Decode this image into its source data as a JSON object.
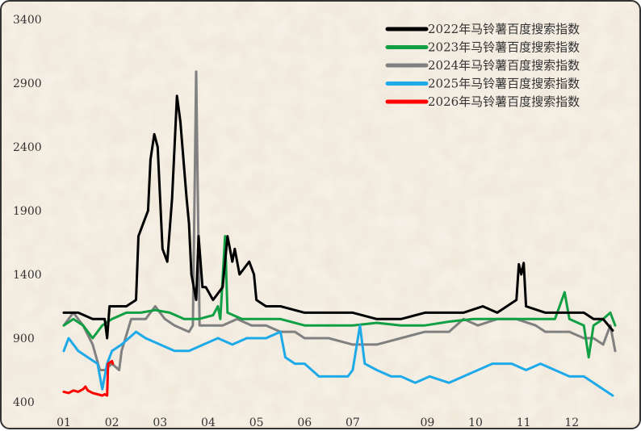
{
  "chart_data": {
    "type": "line",
    "ylim": [
      400,
      3400
    ],
    "y_ticks": [
      "400",
      "900",
      "1400",
      "1900",
      "2400",
      "2900",
      "3400"
    ],
    "x_ticks": [
      "01",
      "02",
      "03",
      "04",
      "05",
      "06",
      "07",
      "09",
      "10",
      "11",
      "12"
    ],
    "legend_position": "top-right",
    "grid": false,
    "series": [
      {
        "name": "2022年马铃薯百度搜索指数",
        "color": "#000000",
        "points": [
          [
            1.0,
            1100
          ],
          [
            1.3,
            1100
          ],
          [
            1.6,
            1050
          ],
          [
            1.85,
            1050
          ],
          [
            1.9,
            900
          ],
          [
            1.95,
            1150
          ],
          [
            2.3,
            1150
          ],
          [
            2.5,
            1200
          ],
          [
            2.55,
            1700
          ],
          [
            2.65,
            1800
          ],
          [
            2.75,
            1900
          ],
          [
            2.8,
            2300
          ],
          [
            2.88,
            2500
          ],
          [
            2.95,
            2400
          ],
          [
            3.05,
            1600
          ],
          [
            3.15,
            1500
          ],
          [
            3.25,
            2000
          ],
          [
            3.35,
            2800
          ],
          [
            3.42,
            2600
          ],
          [
            3.55,
            2000
          ],
          [
            3.6,
            1800
          ],
          [
            3.65,
            1400
          ],
          [
            3.7,
            1300
          ],
          [
            3.75,
            1200
          ],
          [
            3.8,
            1700
          ],
          [
            3.88,
            1300
          ],
          [
            3.95,
            1300
          ],
          [
            4.1,
            1200
          ],
          [
            4.3,
            1300
          ],
          [
            4.4,
            1700
          ],
          [
            4.5,
            1500
          ],
          [
            4.55,
            1600
          ],
          [
            4.65,
            1400
          ],
          [
            4.75,
            1450
          ],
          [
            4.85,
            1500
          ],
          [
            4.95,
            1400
          ],
          [
            5.0,
            1200
          ],
          [
            5.2,
            1150
          ],
          [
            5.5,
            1150
          ],
          [
            6.0,
            1100
          ],
          [
            6.5,
            1100
          ],
          [
            7.0,
            1100
          ],
          [
            7.5,
            1050
          ],
          [
            8.0,
            1050
          ],
          [
            8.5,
            1100
          ],
          [
            9.0,
            1100
          ],
          [
            9.3,
            1100
          ],
          [
            9.7,
            1150
          ],
          [
            10.0,
            1100
          ],
          [
            10.2,
            1150
          ],
          [
            10.4,
            1200
          ],
          [
            10.45,
            1480
          ],
          [
            10.5,
            1400
          ],
          [
            10.55,
            1490
          ],
          [
            10.6,
            1150
          ],
          [
            11.0,
            1100
          ],
          [
            11.5,
            1100
          ],
          [
            11.8,
            1100
          ],
          [
            12.0,
            1050
          ],
          [
            12.2,
            1050
          ],
          [
            12.4,
            960
          ]
        ]
      },
      {
        "name": "2023年马铃薯百度搜索指数",
        "color": "#10a043",
        "points": [
          [
            1.0,
            1000
          ],
          [
            1.2,
            1050
          ],
          [
            1.4,
            1000
          ],
          [
            1.6,
            900
          ],
          [
            1.8,
            1000
          ],
          [
            2.0,
            1050
          ],
          [
            2.3,
            1100
          ],
          [
            2.6,
            1100
          ],
          [
            2.9,
            1120
          ],
          [
            3.2,
            1100
          ],
          [
            3.5,
            1050
          ],
          [
            3.8,
            1050
          ],
          [
            4.1,
            1080
          ],
          [
            4.2,
            1150
          ],
          [
            4.25,
            1050
          ],
          [
            4.35,
            1700
          ],
          [
            4.4,
            1100
          ],
          [
            4.7,
            1050
          ],
          [
            5.0,
            1050
          ],
          [
            5.5,
            1050
          ],
          [
            6.0,
            1000
          ],
          [
            6.5,
            1000
          ],
          [
            7.0,
            1000
          ],
          [
            7.5,
            1020
          ],
          [
            8.0,
            1000
          ],
          [
            8.5,
            1000
          ],
          [
            9.0,
            1030
          ],
          [
            9.5,
            1050
          ],
          [
            10.0,
            1050
          ],
          [
            10.4,
            1050
          ],
          [
            10.8,
            1050
          ],
          [
            11.2,
            1050
          ],
          [
            11.4,
            1260
          ],
          [
            11.5,
            1050
          ],
          [
            11.8,
            1000
          ],
          [
            11.9,
            750
          ],
          [
            12.0,
            1000
          ],
          [
            12.2,
            1050
          ],
          [
            12.35,
            1100
          ],
          [
            12.45,
            1000
          ]
        ]
      },
      {
        "name": "2024年马铃薯百度搜索指数",
        "color": "#808080",
        "points": [
          [
            1.0,
            1000
          ],
          [
            1.2,
            1100
          ],
          [
            1.4,
            1000
          ],
          [
            1.6,
            850
          ],
          [
            1.75,
            650
          ],
          [
            1.85,
            650
          ],
          [
            2.0,
            700
          ],
          [
            2.15,
            650
          ],
          [
            2.2,
            800
          ],
          [
            2.4,
            1050
          ],
          [
            2.7,
            1050
          ],
          [
            2.9,
            1150
          ],
          [
            3.1,
            1050
          ],
          [
            3.3,
            1000
          ],
          [
            3.6,
            950
          ],
          [
            3.68,
            1000
          ],
          [
            3.75,
            2990
          ],
          [
            3.82,
            1000
          ],
          [
            4.0,
            1000
          ],
          [
            4.3,
            1000
          ],
          [
            4.6,
            1050
          ],
          [
            4.9,
            1000
          ],
          [
            5.2,
            1000
          ],
          [
            5.5,
            950
          ],
          [
            5.8,
            950
          ],
          [
            6.0,
            900
          ],
          [
            6.5,
            900
          ],
          [
            7.0,
            850
          ],
          [
            7.5,
            850
          ],
          [
            8.0,
            900
          ],
          [
            8.5,
            950
          ],
          [
            9.0,
            950
          ],
          [
            9.3,
            1050
          ],
          [
            9.6,
            1000
          ],
          [
            10.0,
            1050
          ],
          [
            10.4,
            1050
          ],
          [
            10.8,
            1000
          ],
          [
            11.0,
            950
          ],
          [
            11.5,
            950
          ],
          [
            11.8,
            900
          ],
          [
            12.0,
            900
          ],
          [
            12.2,
            850
          ],
          [
            12.35,
            1000
          ],
          [
            12.45,
            800
          ]
        ]
      },
      {
        "name": "2025年马铃薯百度搜索指数",
        "color": "#1eaae8",
        "points": [
          [
            1.0,
            800
          ],
          [
            1.1,
            900
          ],
          [
            1.3,
            800
          ],
          [
            1.5,
            750
          ],
          [
            1.7,
            700
          ],
          [
            1.8,
            500
          ],
          [
            1.9,
            700
          ],
          [
            2.0,
            800
          ],
          [
            2.2,
            850
          ],
          [
            2.5,
            950
          ],
          [
            2.7,
            900
          ],
          [
            3.0,
            850
          ],
          [
            3.3,
            800
          ],
          [
            3.6,
            800
          ],
          [
            3.9,
            850
          ],
          [
            4.2,
            900
          ],
          [
            4.5,
            850
          ],
          [
            4.8,
            900
          ],
          [
            5.0,
            900
          ],
          [
            5.2,
            900
          ],
          [
            5.5,
            950
          ],
          [
            5.6,
            750
          ],
          [
            5.8,
            700
          ],
          [
            6.0,
            700
          ],
          [
            6.3,
            600
          ],
          [
            6.6,
            600
          ],
          [
            6.9,
            600
          ],
          [
            7.0,
            650
          ],
          [
            7.15,
            1000
          ],
          [
            7.25,
            700
          ],
          [
            7.5,
            650
          ],
          [
            7.8,
            600
          ],
          [
            8.0,
            600
          ],
          [
            8.3,
            550
          ],
          [
            8.6,
            600
          ],
          [
            9.0,
            550
          ],
          [
            9.3,
            600
          ],
          [
            9.6,
            650
          ],
          [
            9.9,
            700
          ],
          [
            10.0,
            700
          ],
          [
            10.3,
            700
          ],
          [
            10.6,
            650
          ],
          [
            10.9,
            700
          ],
          [
            11.2,
            650
          ],
          [
            11.5,
            600
          ],
          [
            11.8,
            600
          ],
          [
            12.0,
            550
          ],
          [
            12.2,
            500
          ],
          [
            12.4,
            450
          ]
        ]
      },
      {
        "name": "2026年马铃薯百度搜索指数",
        "color": "#ff0000",
        "points": [
          [
            1.0,
            480
          ],
          [
            1.1,
            470
          ],
          [
            1.2,
            490
          ],
          [
            1.3,
            480
          ],
          [
            1.4,
            500
          ],
          [
            1.45,
            520
          ],
          [
            1.5,
            490
          ],
          [
            1.6,
            470
          ],
          [
            1.7,
            460
          ],
          [
            1.8,
            450
          ],
          [
            1.85,
            460
          ],
          [
            1.9,
            450
          ],
          [
            1.92,
            700
          ],
          [
            2.0,
            720
          ],
          [
            2.02,
            700
          ]
        ]
      }
    ]
  }
}
